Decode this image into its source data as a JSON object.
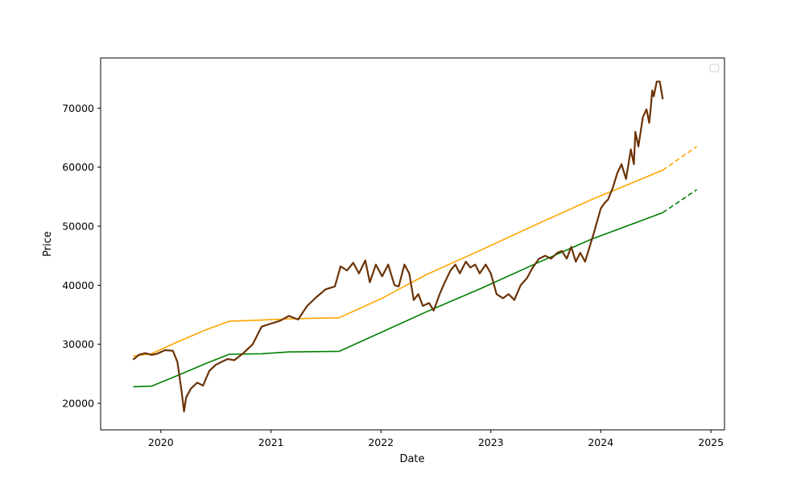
{
  "chart_data": {
    "type": "line",
    "title": "",
    "xlabel": "Date",
    "ylabel": "Price",
    "xlim": [
      "2019-06-15",
      "2025-02-15"
    ],
    "ylim": [
      15500,
      78500
    ],
    "grid": false,
    "legend": {
      "visible": true,
      "entries": [],
      "placement": "top-right"
    },
    "xticks": [
      {
        "value": "2020-01-01",
        "label": "2020"
      },
      {
        "value": "2021-01-01",
        "label": "2021"
      },
      {
        "value": "2022-01-01",
        "label": "2022"
      },
      {
        "value": "2023-01-01",
        "label": "2023"
      },
      {
        "value": "2024-01-01",
        "label": "2024"
      },
      {
        "value": "2025-01-01",
        "label": "2025"
      }
    ],
    "yticks": [
      {
        "value": 20000,
        "label": "20000"
      },
      {
        "value": 30000,
        "label": "30000"
      },
      {
        "value": 40000,
        "label": "40000"
      },
      {
        "value": 50000,
        "label": "50000"
      },
      {
        "value": 60000,
        "label": "60000"
      },
      {
        "value": 70000,
        "label": "70000"
      }
    ],
    "series": [
      {
        "color": "#ffa500",
        "style": "solid",
        "x": [
          "2019-10-01",
          "2019-12-01",
          "2020-03-01",
          "2020-06-01",
          "2020-08-15",
          "2020-12-01",
          "2021-03-01",
          "2021-08-15",
          "2022-01-01",
          "2022-06-01",
          "2022-12-01",
          "2023-06-01",
          "2023-12-01",
          "2024-07-25"
        ],
        "y": [
          28000,
          28400,
          30500,
          32500,
          33900,
          34100,
          34300,
          34500,
          37700,
          41800,
          46000,
          50300,
          54500,
          59500
        ]
      },
      {
        "color": "#ffa500",
        "style": "dashed",
        "x": [
          "2024-07-25",
          "2024-11-15"
        ],
        "y": [
          59500,
          63500
        ]
      },
      {
        "color": "#008000",
        "style": "solid",
        "x": [
          "2019-10-01",
          "2019-12-01",
          "2020-03-01",
          "2020-06-01",
          "2020-08-15",
          "2020-12-01",
          "2021-03-01",
          "2021-08-15",
          "2022-01-01",
          "2022-06-01",
          "2022-12-01",
          "2023-06-01",
          "2023-12-01",
          "2024-07-25"
        ],
        "y": [
          22800,
          22900,
          24800,
          26800,
          28300,
          28400,
          28700,
          28800,
          32000,
          35500,
          39500,
          43700,
          47800,
          52300
        ]
      },
      {
        "color": "#008000",
        "style": "dashed",
        "x": [
          "2024-07-25",
          "2024-11-15"
        ],
        "y": [
          52300,
          56200
        ]
      },
      {
        "color": "#6b3306",
        "style": "solid",
        "x": [
          "2019-10-01",
          "2019-10-20",
          "2019-11-10",
          "2019-12-01",
          "2019-12-20",
          "2020-01-15",
          "2020-02-10",
          "2020-02-25",
          "2020-03-10",
          "2020-03-18",
          "2020-03-25",
          "2020-04-10",
          "2020-05-01",
          "2020-05-20",
          "2020-06-10",
          "2020-07-01",
          "2020-07-20",
          "2020-08-10",
          "2020-09-01",
          "2020-10-01",
          "2020-11-01",
          "2020-12-01",
          "2021-01-01",
          "2021-02-01",
          "2021-03-01",
          "2021-04-01",
          "2021-05-01",
          "2021-06-01",
          "2021-07-01",
          "2021-08-01",
          "2021-08-20",
          "2021-09-10",
          "2021-10-01",
          "2021-10-20",
          "2021-11-10",
          "2021-11-25",
          "2021-12-15",
          "2022-01-05",
          "2022-01-25",
          "2022-02-15",
          "2022-03-01",
          "2022-03-20",
          "2022-04-05",
          "2022-04-20",
          "2022-05-05",
          "2022-05-20",
          "2022-06-10",
          "2022-06-25",
          "2022-07-15",
          "2022-08-01",
          "2022-08-20",
          "2022-09-05",
          "2022-09-20",
          "2022-10-10",
          "2022-10-25",
          "2022-11-10",
          "2022-11-25",
          "2022-12-15",
          "2023-01-01",
          "2023-01-20",
          "2023-02-10",
          "2023-03-01",
          "2023-03-20",
          "2023-04-10",
          "2023-05-01",
          "2023-05-20",
          "2023-06-10",
          "2023-07-01",
          "2023-07-20",
          "2023-08-10",
          "2023-08-25",
          "2023-09-10",
          "2023-09-25",
          "2023-10-10",
          "2023-10-25",
          "2023-11-10",
          "2023-11-25",
          "2023-12-10",
          "2024-01-01",
          "2024-01-15",
          "2024-01-25",
          "2024-02-10",
          "2024-02-25",
          "2024-03-10",
          "2024-03-25",
          "2024-04-10",
          "2024-04-20",
          "2024-04-25",
          "2024-05-05",
          "2024-05-20",
          "2024-06-01",
          "2024-06-10",
          "2024-06-15",
          "2024-06-20",
          "2024-06-25",
          "2024-07-05",
          "2024-07-15",
          "2024-07-20",
          "2024-07-25"
        ],
        "y": [
          27400,
          28200,
          28500,
          28200,
          28400,
          29000,
          28900,
          27000,
          22000,
          18600,
          21000,
          22500,
          23500,
          23000,
          25500,
          26500,
          27000,
          27500,
          27300,
          28500,
          30000,
          33000,
          33500,
          34000,
          34800,
          34200,
          36500,
          38000,
          39300,
          39800,
          43200,
          42500,
          43800,
          42000,
          44200,
          40500,
          43500,
          41500,
          43500,
          40000,
          39800,
          43500,
          42000,
          37500,
          38500,
          36500,
          37000,
          35700,
          38500,
          40500,
          42500,
          43500,
          42000,
          44000,
          43000,
          43500,
          42000,
          43500,
          42000,
          38500,
          37800,
          38500,
          37500,
          40000,
          41200,
          43000,
          44500,
          45000,
          44500,
          45500,
          45800,
          44500,
          46500,
          44000,
          45500,
          44000,
          46500,
          49000,
          53000,
          54000,
          54500,
          56500,
          59000,
          60500,
          58000,
          63000,
          60500,
          66000,
          63500,
          68500,
          69800,
          67500,
          70000,
          73000,
          72000,
          74500,
          74500,
          73000,
          71500
        ]
      }
    ]
  }
}
